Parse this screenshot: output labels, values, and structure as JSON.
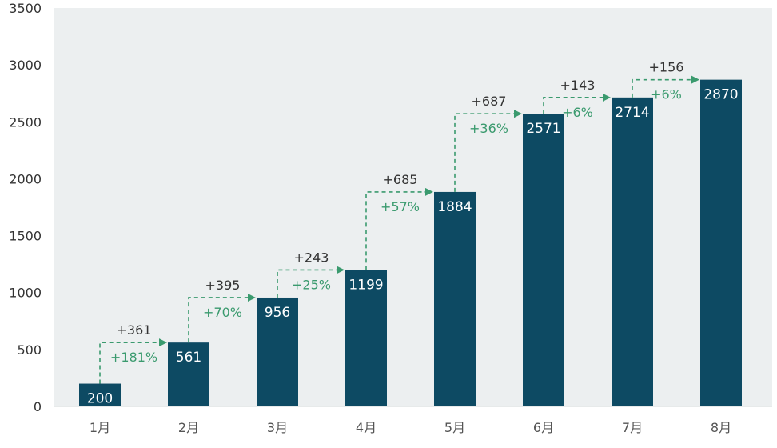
{
  "chart_data": {
    "type": "bar",
    "categories": [
      "1月",
      "2月",
      "3月",
      "4月",
      "5月",
      "6月",
      "7月",
      "8月"
    ],
    "values": [
      200,
      561,
      956,
      1199,
      1884,
      2571,
      2714,
      2870
    ],
    "increments": [
      "+361",
      "+395",
      "+243",
      "+685",
      "+687",
      "+143",
      "+156"
    ],
    "growth_pct": [
      "+181%",
      "+70%",
      "+25%",
      "+57%",
      "+36%",
      "+6%",
      "+6%"
    ],
    "ylim": [
      0,
      3500
    ],
    "yticks": [
      0,
      500,
      1000,
      1500,
      2000,
      2500,
      3000,
      3500
    ],
    "title": "",
    "xlabel": "",
    "ylabel": "",
    "grid": false,
    "colors": {
      "bar": "#0d4a63",
      "plot_bg": "#eceff0",
      "arrow": "#3a9a6e",
      "pct_text": "#3a9a6e"
    }
  }
}
